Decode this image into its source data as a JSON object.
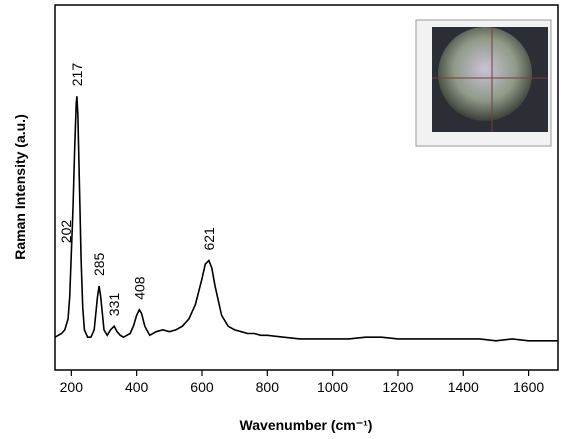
{
  "chart_data": {
    "type": "line",
    "x_label": "Wavenumber (cm⁻¹)",
    "y_label": "Raman Intensity (a.u.)",
    "x": [
      150,
      160,
      170,
      180,
      190,
      195,
      200,
      205,
      210,
      215,
      217,
      220,
      225,
      230,
      235,
      240,
      250,
      260,
      270,
      280,
      285,
      290,
      300,
      310,
      320,
      331,
      340,
      350,
      360,
      370,
      380,
      390,
      400,
      408,
      415,
      425,
      440,
      460,
      480,
      500,
      520,
      540,
      560,
      580,
      600,
      610,
      621,
      630,
      640,
      660,
      680,
      700,
      720,
      740,
      760,
      780,
      800,
      850,
      900,
      950,
      1000,
      1050,
      1100,
      1150,
      1200,
      1250,
      1300,
      1350,
      1400,
      1450,
      1500,
      1550,
      1600,
      1650,
      1690
    ],
    "series": [
      {
        "color": "#000000",
        "values": [
          9,
          9.5,
          10,
          11,
          14,
          20,
          32,
          44,
          60,
          73,
          75,
          70,
          50,
          30,
          17,
          11,
          9,
          9,
          11,
          20,
          23,
          20,
          11,
          9.5,
          11,
          12,
          10.5,
          9.5,
          9,
          9.5,
          10,
          12,
          15,
          16.5,
          15.5,
          12,
          9.5,
          10.5,
          11,
          10.5,
          11,
          12,
          14,
          18,
          25,
          29,
          30,
          28,
          23,
          15,
          12,
          11,
          10.5,
          10,
          10,
          9.5,
          9.5,
          9,
          8.5,
          8.5,
          8.5,
          8.5,
          9,
          9,
          8.5,
          8.5,
          8.5,
          8.5,
          8.5,
          8.5,
          8,
          8.5,
          8,
          8,
          8
        ]
      }
    ],
    "peaks": [
      202,
      217,
      285,
      331,
      408,
      621
    ],
    "xlim": [
      150,
      1690
    ],
    "ylim": [
      0,
      100
    ],
    "xticks": [
      200,
      400,
      600,
      800,
      1000,
      1200,
      1400,
      1600
    ]
  }
}
